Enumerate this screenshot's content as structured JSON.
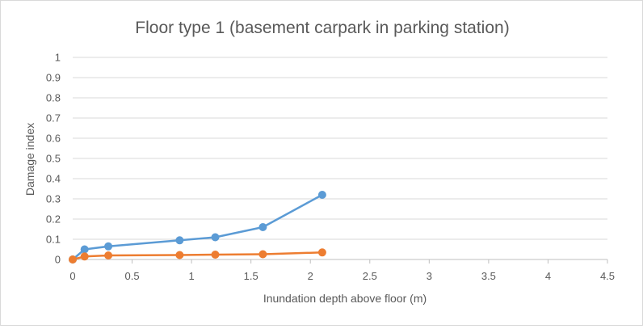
{
  "chart_data": {
    "type": "line",
    "title": "Floor type 1 (basement carpark in parking station)",
    "xlabel": "Inundation depth above floor (m)",
    "ylabel": "Damage index",
    "xlim": [
      0,
      4.5
    ],
    "ylim": [
      0,
      1
    ],
    "x_ticks": [
      "0",
      "0.5",
      "1",
      "1.5",
      "2",
      "2.5",
      "3",
      "3.5",
      "4",
      "4.5"
    ],
    "y_ticks": [
      "0",
      "0.1",
      "0.2",
      "0.3",
      "0.4",
      "0.5",
      "0.6",
      "0.7",
      "0.8",
      "0.9",
      "1"
    ],
    "grid": "horizontal",
    "legend": "none",
    "series": [
      {
        "color": "#5b9bd5",
        "points": [
          [
            0,
            0
          ],
          [
            0.1,
            0.05
          ],
          [
            0.3,
            0.065
          ],
          [
            0.9,
            0.095
          ],
          [
            1.2,
            0.11
          ],
          [
            1.6,
            0.16
          ],
          [
            2.1,
            0.32
          ]
        ]
      },
      {
        "color": "#ed7d31",
        "points": [
          [
            0,
            0
          ],
          [
            0.1,
            0.015
          ],
          [
            0.3,
            0.02
          ],
          [
            0.9,
            0.022
          ],
          [
            1.2,
            0.024
          ],
          [
            1.6,
            0.026
          ],
          [
            2.1,
            0.035
          ]
        ]
      }
    ]
  }
}
